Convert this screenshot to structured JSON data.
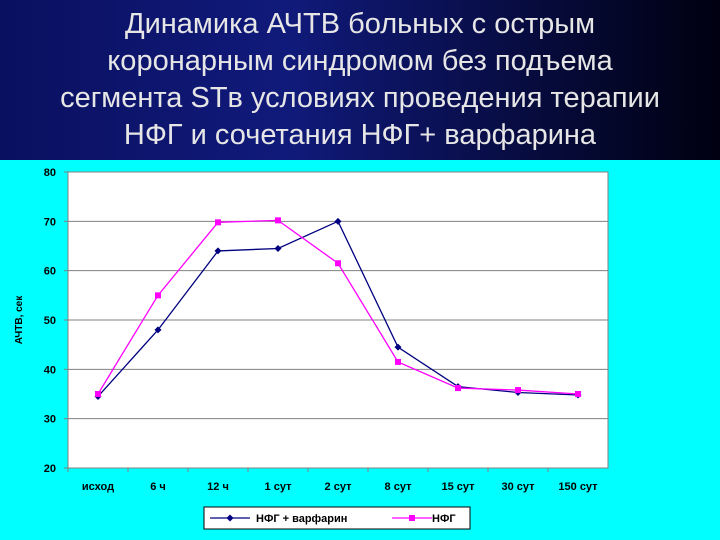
{
  "slide": {
    "title": "Динамика АЧТВ больных с острым\nкоронарным синдромом без подъема\nсегмента STв условиях проведения терапии\nНФГ и  сочетания НФГ+ варфарина"
  },
  "colors": {
    "background": "#00ffff",
    "series1": "#000080",
    "series2": "#ff00ff"
  },
  "chart_data": {
    "type": "line",
    "title": "",
    "xlabel": "",
    "ylabel": "АЧТВ, сек",
    "categories": [
      "исход",
      "6 ч",
      "12 ч",
      "1 сут",
      "2 сут",
      "8 сут",
      "15 сут",
      "30 сут",
      "150 сут"
    ],
    "ylim": [
      20,
      80
    ],
    "yticks": [
      20,
      30,
      40,
      50,
      60,
      70,
      80
    ],
    "grid": true,
    "legend": "bottom",
    "series": [
      {
        "name": "НФГ + варфарин",
        "marker": "diamond",
        "values": [
          34.5,
          48,
          64,
          64.5,
          70,
          44.5,
          36.5,
          35.3,
          34.8
        ]
      },
      {
        "name": "НФГ",
        "marker": "square",
        "values": [
          35,
          55,
          69.8,
          70.2,
          61.5,
          41.5,
          36.2,
          35.8,
          35
        ]
      }
    ]
  }
}
